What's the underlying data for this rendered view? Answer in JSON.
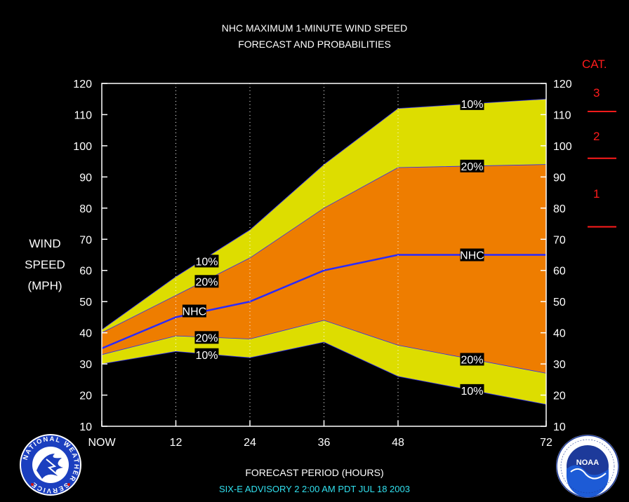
{
  "title_line1": "NHC MAXIMUM 1-MINUTE WIND SPEED",
  "title_line2": "FORECAST AND PROBABILITIES",
  "ylabel": [
    "WIND",
    "SPEED",
    "(MPH)"
  ],
  "footer": "SIX-E   ADVISORY  2  2:00  AM  PDT  JUL  18  2003",
  "category_scale": {
    "header": "CAT.",
    "labels": [
      "3",
      "2",
      "1"
    ],
    "thresholds_mph": [
      111,
      96,
      74
    ],
    "color": "#ff1b1b"
  },
  "logos": {
    "left_text": "NATIONAL WEATHER SERVICE",
    "right_text": "NOAA"
  },
  "colors": {
    "outer_band": "#dddd00",
    "inner_band": "#ee7d00",
    "nhc_line": "#2a2aff",
    "footer_text": "#31e0ee",
    "category": "#ff1b1b"
  },
  "chart_data": {
    "type": "area",
    "title": "NHC MAXIMUM 1-MINUTE WIND SPEED FORECAST AND PROBABILITIES",
    "xlabel": "FORECAST PERIOD (HOURS)",
    "ylabel": "WIND SPEED (MPH)",
    "x": [
      0,
      12,
      24,
      36,
      48,
      72
    ],
    "x_tick_labels": [
      "NOW",
      "12",
      "24",
      "36",
      "48",
      "72"
    ],
    "xlim": [
      0,
      72
    ],
    "ylim": [
      10,
      120
    ],
    "y_ticks": [
      10,
      20,
      30,
      40,
      50,
      60,
      70,
      80,
      90,
      100,
      110,
      120
    ],
    "grid": "vertical dotted at 12, 24, 36, 48",
    "series": [
      {
        "name": "10%",
        "values": [
          41,
          58,
          73,
          94,
          112,
          115
        ]
      },
      {
        "name": "20%",
        "values": [
          40,
          52,
          64,
          80,
          93,
          94
        ]
      },
      {
        "name": "NHC",
        "values": [
          35,
          45,
          50,
          60,
          65,
          65
        ]
      },
      {
        "name": "20%",
        "values": [
          33,
          39,
          38,
          44,
          36,
          27
        ]
      },
      {
        "name": "10%",
        "values": [
          30,
          34,
          32,
          37,
          26,
          17
        ]
      }
    ],
    "labels": [
      {
        "text": "10%",
        "x": 17,
        "y": 63
      },
      {
        "text": "20%",
        "x": 17,
        "y": 56.5
      },
      {
        "text": "NHC",
        "x": 15,
        "y": 47
      },
      {
        "text": "20%",
        "x": 17,
        "y": 38.5
      },
      {
        "text": "10%",
        "x": 17,
        "y": 33
      },
      {
        "text": "10%",
        "x": 60,
        "y": 113.5
      },
      {
        "text": "20%",
        "x": 60,
        "y": 93.5
      },
      {
        "text": "NHC",
        "x": 60,
        "y": 65
      },
      {
        "text": "20%",
        "x": 60,
        "y": 31.5
      },
      {
        "text": "10%",
        "x": 60,
        "y": 21.5
      }
    ]
  }
}
